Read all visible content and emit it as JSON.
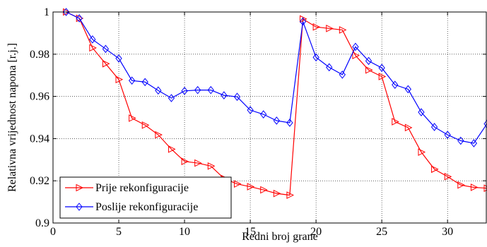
{
  "chart_data": {
    "type": "line",
    "xlabel": "Redni broj grane",
    "ylabel": "Relativna vrijednost napona [r.j.]",
    "xlim": [
      0,
      33
    ],
    "ylim": [
      0.9,
      1.0
    ],
    "xticks": [
      0,
      5,
      10,
      15,
      20,
      25,
      30
    ],
    "yticks": [
      0.9,
      0.92,
      0.94,
      0.96,
      0.98,
      1
    ],
    "ytick_labels": [
      "0.9",
      "0.92",
      "0.94",
      "0.96",
      "0.98",
      "1"
    ],
    "grid": true,
    "legend_position": "bottom-left",
    "x": [
      1,
      2,
      3,
      4,
      5,
      6,
      7,
      8,
      9,
      10,
      11,
      12,
      13,
      14,
      15,
      16,
      17,
      18,
      19,
      20,
      21,
      22,
      23,
      24,
      25,
      26,
      27,
      28,
      29,
      30,
      31,
      32,
      33
    ],
    "series": [
      {
        "name": "Prije rekonfiguracije",
        "color": "#ff0000",
        "marker": "triangle-right",
        "values": [
          1.0,
          0.997,
          0.983,
          0.9755,
          0.968,
          0.9497,
          0.9464,
          0.9418,
          0.935,
          0.9292,
          0.9284,
          0.927,
          0.9211,
          0.9185,
          0.9172,
          0.9157,
          0.914,
          0.9132,
          0.9967,
          0.9929,
          0.9922,
          0.9915,
          0.9794,
          0.9725,
          0.9694,
          0.948,
          0.9452,
          0.9336,
          0.9255,
          0.922,
          0.918,
          0.9169,
          0.9165
        ]
      },
      {
        "name": "Poslije rekonfiguracije",
        "color": "#0000ff",
        "marker": "diamond",
        "values": [
          1.0,
          0.997,
          0.987,
          0.9825,
          0.978,
          0.9675,
          0.9668,
          0.9628,
          0.9592,
          0.9626,
          0.963,
          0.963,
          0.9605,
          0.9598,
          0.9535,
          0.9515,
          0.9485,
          0.9475,
          0.9955,
          0.9785,
          0.9738,
          0.9703,
          0.9835,
          0.9768,
          0.9735,
          0.9655,
          0.9634,
          0.9525,
          0.9455,
          0.9418,
          0.939,
          0.9378,
          0.947
        ]
      }
    ]
  }
}
